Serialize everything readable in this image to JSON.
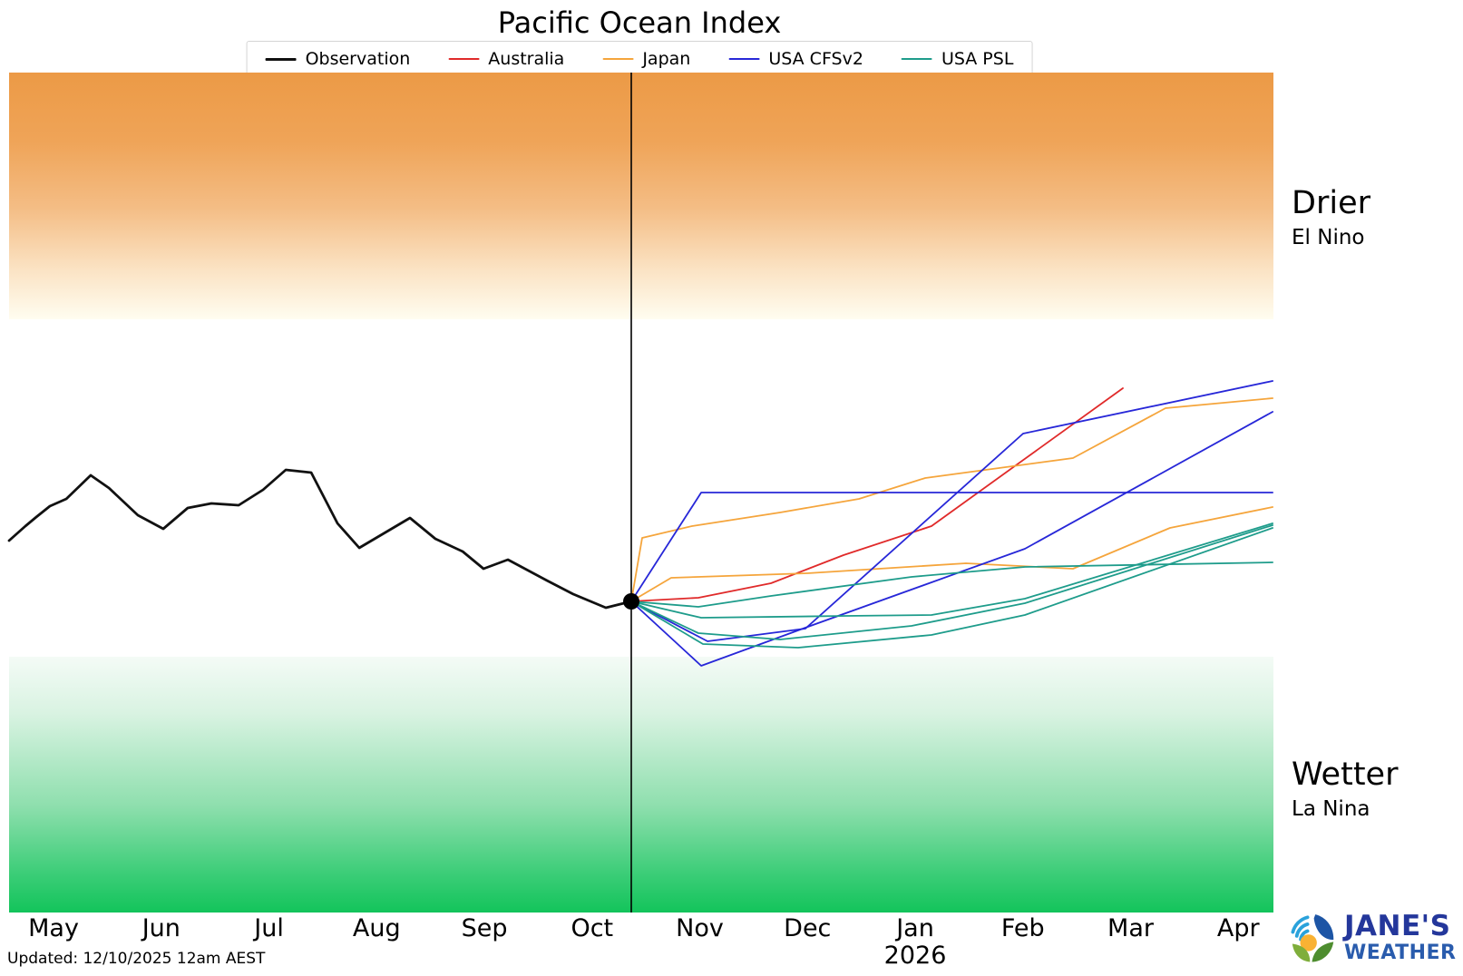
{
  "title": "Pacific Ocean Index",
  "legend": {
    "items": [
      {
        "label": "Observation",
        "color": "#111111",
        "lw": 3
      },
      {
        "label": "Australia",
        "color": "#e02a2a",
        "lw": 2
      },
      {
        "label": "Japan",
        "color": "#f5a53c",
        "lw": 2
      },
      {
        "label": "USA CFSv2",
        "color": "#2727d8",
        "lw": 2
      },
      {
        "label": "USA PSL",
        "color": "#1e9c8b",
        "lw": 2
      }
    ]
  },
  "side_labels": {
    "drier": "Drier",
    "drier_sub": "El Nino",
    "wetter": "Wetter",
    "wetter_sub": "La Nina"
  },
  "footer": {
    "updated": "Updated: 12/10/2025 12am AEST"
  },
  "logo": {
    "name": "JANE'S",
    "sub": "WEATHER"
  },
  "band_colors": {
    "drier_top": "#ec9a46",
    "wetter_bottom": "#13c45b"
  },
  "chart_data": {
    "type": "line",
    "title": "Pacific Ocean Index",
    "x_axis": {
      "unit": "month",
      "labels": [
        "May",
        "Jun",
        "Jul",
        "Aug",
        "Sep",
        "Oct",
        "Nov",
        "Dec",
        "Jan",
        "Feb",
        "Mar",
        "Apr"
      ],
      "year_label": "2026",
      "year_under": "Jan",
      "x_left": -0.413,
      "x_right": 11.326
    },
    "y_axis": {
      "center_value": 0,
      "v_top": 4.63,
      "v_bottom": -4.63,
      "drier_band_from": 1.91,
      "wetter_band_from": -1.81,
      "grid": false
    },
    "now_marker": {
      "t": 5.364,
      "v": -1.2
    },
    "series": [
      {
        "name": "Observation",
        "color": "#111111",
        "lw": 2.8,
        "points": [
          [
            -0.413,
            -0.53
          ],
          [
            -0.261,
            -0.37
          ],
          [
            -0.16,
            -0.27
          ],
          [
            -0.034,
            -0.15
          ],
          [
            0.118,
            -0.07
          ],
          [
            0.345,
            0.19
          ],
          [
            0.514,
            0.05
          ],
          [
            0.783,
            -0.25
          ],
          [
            1.019,
            -0.4
          ],
          [
            1.246,
            -0.17
          ],
          [
            1.465,
            -0.12
          ],
          [
            1.718,
            -0.14
          ],
          [
            1.945,
            0.03
          ],
          [
            2.156,
            0.25
          ],
          [
            2.392,
            0.22
          ],
          [
            2.636,
            -0.34
          ],
          [
            2.838,
            -0.61
          ],
          [
            3.309,
            -0.28
          ],
          [
            3.545,
            -0.51
          ],
          [
            3.798,
            -0.65
          ],
          [
            3.992,
            -0.84
          ],
          [
            4.219,
            -0.74
          ],
          [
            4.581,
            -0.97
          ],
          [
            4.825,
            -1.12
          ],
          [
            5.128,
            -1.27
          ],
          [
            5.364,
            -1.2
          ]
        ]
      },
      {
        "name": "Australia",
        "member": 1,
        "color": "#e02a2a",
        "lw": 1.8,
        "points": [
          [
            5.364,
            -1.2
          ],
          [
            5.987,
            -1.16
          ],
          [
            6.661,
            -1.0
          ],
          [
            7.334,
            -0.69
          ],
          [
            8.151,
            -0.37
          ],
          [
            9.928,
            1.15
          ]
        ]
      },
      {
        "name": "Japan",
        "member": 1,
        "color": "#f5a53c",
        "lw": 1.8,
        "points": [
          [
            5.364,
            -1.2
          ],
          [
            5.465,
            -0.5
          ],
          [
            5.928,
            -0.37
          ],
          [
            6.745,
            -0.22
          ],
          [
            7.478,
            -0.07
          ],
          [
            8.093,
            0.16
          ],
          [
            9.465,
            0.38
          ],
          [
            10.324,
            0.93
          ],
          [
            11.318,
            1.04
          ]
        ]
      },
      {
        "name": "Japan",
        "member": 2,
        "color": "#f5a53c",
        "lw": 1.8,
        "points": [
          [
            5.364,
            -1.2
          ],
          [
            5.734,
            -0.94
          ],
          [
            6.998,
            -0.89
          ],
          [
            8.471,
            -0.78
          ],
          [
            9.465,
            -0.84
          ],
          [
            10.366,
            -0.39
          ],
          [
            11.318,
            -0.16
          ]
        ]
      },
      {
        "name": "USA CFSv2",
        "member": 1,
        "color": "#2727d8",
        "lw": 1.8,
        "points": [
          [
            5.364,
            -1.2
          ],
          [
            6.013,
            0.0
          ],
          [
            11.318,
            0.0
          ]
        ]
      },
      {
        "name": "USA CFSv2",
        "member": 2,
        "color": "#2727d8",
        "lw": 1.8,
        "points": [
          [
            5.364,
            -1.2
          ],
          [
            6.072,
            -1.64
          ],
          [
            6.981,
            -1.5
          ],
          [
            9.002,
            0.65
          ],
          [
            11.318,
            1.23
          ]
        ]
      },
      {
        "name": "USA CFSv2",
        "member": 3,
        "color": "#2727d8",
        "lw": 1.8,
        "points": [
          [
            5.364,
            -1.2
          ],
          [
            6.013,
            -1.91
          ],
          [
            6.981,
            -1.49
          ],
          [
            9.019,
            -0.62
          ],
          [
            11.318,
            0.89
          ]
        ]
      },
      {
        "name": "USA PSL",
        "member": 1,
        "color": "#1e9c8b",
        "lw": 1.8,
        "points": [
          [
            5.364,
            -1.2
          ],
          [
            5.987,
            -1.26
          ],
          [
            6.661,
            -1.14
          ],
          [
            7.966,
            -0.93
          ],
          [
            9.019,
            -0.82
          ],
          [
            11.318,
            -0.77
          ]
        ]
      },
      {
        "name": "USA PSL",
        "member": 2,
        "color": "#1e9c8b",
        "lw": 1.8,
        "points": [
          [
            5.364,
            -1.2
          ],
          [
            6.013,
            -1.38
          ],
          [
            7.36,
            -1.36
          ],
          [
            8.151,
            -1.35
          ],
          [
            9.019,
            -1.17
          ],
          [
            11.318,
            -0.34
          ]
        ]
      },
      {
        "name": "USA PSL",
        "member": 3,
        "color": "#1e9c8b",
        "lw": 1.8,
        "points": [
          [
            5.364,
            -1.2
          ],
          [
            5.987,
            -1.55
          ],
          [
            6.745,
            -1.62
          ],
          [
            7.966,
            -1.47
          ],
          [
            9.019,
            -1.22
          ],
          [
            11.318,
            -0.36
          ]
        ]
      },
      {
        "name": "USA PSL",
        "member": 4,
        "color": "#1e9c8b",
        "lw": 1.8,
        "points": [
          [
            5.364,
            -1.2
          ],
          [
            6.029,
            -1.67
          ],
          [
            6.913,
            -1.71
          ],
          [
            8.151,
            -1.57
          ],
          [
            9.019,
            -1.35
          ],
          [
            11.318,
            -0.39
          ]
        ]
      }
    ]
  }
}
